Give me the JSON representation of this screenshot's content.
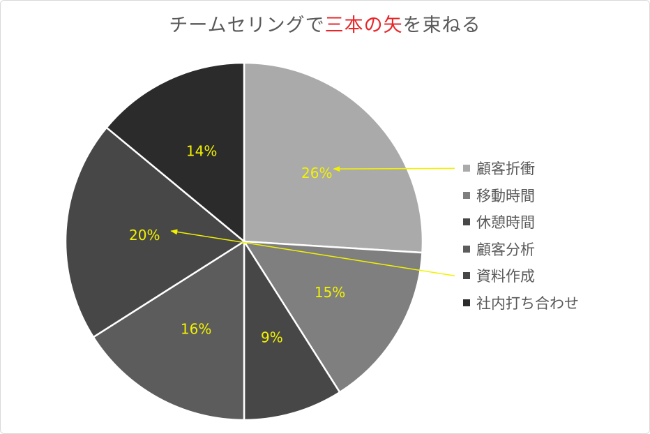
{
  "chart_data": {
    "type": "pie",
    "title_parts": [
      {
        "text": "チームセリングで",
        "color": "#595959"
      },
      {
        "text": "三本の矢",
        "color": "#e8262a"
      },
      {
        "text": "を束ねる",
        "color": "#595959"
      }
    ],
    "slices": [
      {
        "label": "顧客折衝",
        "value": 26,
        "display": "26%",
        "color": "#aaaaaa"
      },
      {
        "label": "移動時間",
        "value": 15,
        "display": "15%",
        "color": "#7f7f7f"
      },
      {
        "label": "休憩時間",
        "value": 9,
        "display": "9%",
        "color": "#474747"
      },
      {
        "label": "顧客分析",
        "value": 16,
        "display": "16%",
        "color": "#5c5c5c"
      },
      {
        "label": "資料作成",
        "value": 20,
        "display": "20%",
        "color": "#474747"
      },
      {
        "label": "社内打ち合わせ",
        "value": 14,
        "display": "14%",
        "color": "#2b2b2b"
      }
    ],
    "start_angle_deg": 0,
    "direction": "clockwise",
    "data_label_color": "#f2f200",
    "legend_position": "right",
    "annotation_arrows": [
      {
        "from": "legend",
        "to_slice": "顧客折衝",
        "color": "#f2f200"
      },
      {
        "from": "legend",
        "to_slice": "資料作成",
        "color": "#f2f200"
      }
    ]
  }
}
